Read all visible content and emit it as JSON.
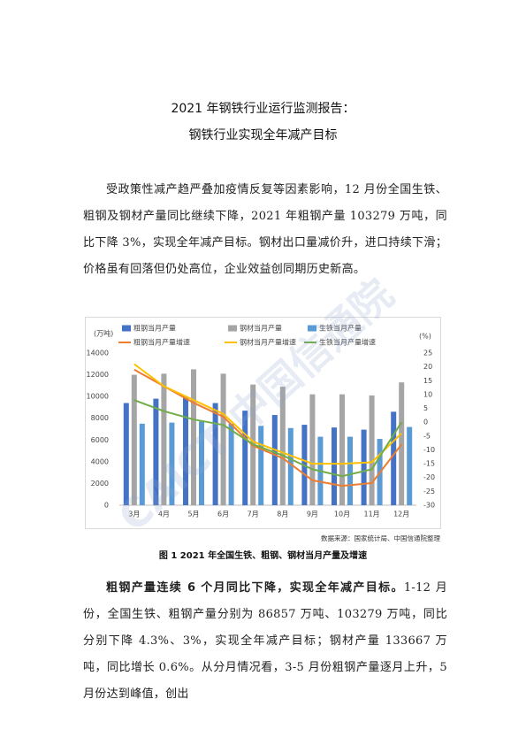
{
  "title_lines": [
    "2021 年钢铁行业运行监测报告：",
    "钢铁行业实现全年减产目标"
  ],
  "intro": "受政策性减产趋严叠加疫情反复等因素影响，12 月份全国生铁、粗钢及钢材产量同比继续下降，2021 年粗钢产量 103279 万吨，同比下降 3%，实现全年减产目标。钢材出口量减价升，进口持续下滑；价格虽有回落但仍处高位，企业效益创同期历史新高。",
  "source": "数据来源：国家统计局、中国信通院整理",
  "caption": "图 1 2021 年全国生铁、粗钢、钢材当月产量及增速",
  "lead": "粗钢产量连续 6 个月同比下降，实现全年减产目标。",
  "body": "1-12 月份，全国生铁、粗钢产量分别为 86857 万吨、103279 万吨，同比分别下降 4.3%、3%，实现全年减产目标；钢材产量 133667 万吨，同比增长 0.6%。从分月情况看，3-5 月份粗钢产量逐月上升，5 月份达到峰值，创出",
  "watermark": "CAICT 中国信通院",
  "chart_data": {
    "type": "bar-line",
    "y_label": "(万吨)",
    "y2_label": "(%)",
    "categories": [
      "3月",
      "4月",
      "5月",
      "6月",
      "7月",
      "8月",
      "9月",
      "10月",
      "11月",
      "12月"
    ],
    "ylim": [
      0,
      14000
    ],
    "yticks": [
      0,
      2000,
      4000,
      6000,
      8000,
      10000,
      12000,
      14000
    ],
    "y2lim": [
      -30,
      25
    ],
    "y2ticks": [
      -30,
      -25,
      -20,
      -15,
      -10,
      -5,
      0,
      5,
      10,
      15,
      20,
      25
    ],
    "grid": false,
    "series": [
      {
        "name": "粗钢当月产量",
        "type": "bar",
        "color": "#4472c4",
        "values": [
          9400,
          9800,
          9900,
          9400,
          8700,
          8300,
          7400,
          7150,
          6950,
          8600
        ]
      },
      {
        "name": "钢材当月产量",
        "type": "bar",
        "color": "#a5a5a5",
        "values": [
          12000,
          12100,
          12500,
          12100,
          11100,
          10900,
          10200,
          10200,
          10100,
          11300
        ]
      },
      {
        "name": "生铁当月产量",
        "type": "bar",
        "color": "#5b9bd5",
        "values": [
          7500,
          7600,
          7700,
          7500,
          7300,
          7100,
          6300,
          6300,
          6100,
          7200
        ]
      },
      {
        "name": "粗钢当月产量增速",
        "type": "line",
        "axis": "y2",
        "color": "#ed7d31",
        "values": [
          19,
          13,
          7,
          2,
          -8.5,
          -13,
          -21,
          -23,
          -22,
          -8
        ]
      },
      {
        "name": "钢材当月产量增速",
        "type": "line",
        "axis": "y2",
        "color": "#ffc000",
        "values": [
          21,
          13,
          8,
          3,
          -7,
          -11,
          -15,
          -15,
          -14.5,
          -4
        ]
      },
      {
        "name": "生铁当月产量增速",
        "type": "line",
        "axis": "y2",
        "color": "#70ad47",
        "values": [
          8,
          4,
          1,
          -1,
          -8,
          -12,
          -17,
          -19.5,
          -17,
          0
        ]
      }
    ]
  }
}
